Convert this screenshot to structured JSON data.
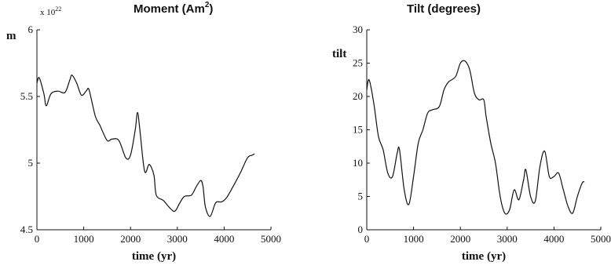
{
  "chart_data": [
    {
      "type": "line",
      "title": "Moment (Am",
      "title_superscript": "2",
      "title_close": ")",
      "ylabel": "m",
      "xlabel": "time (yr)",
      "y_exponent_prefix": "x 10",
      "y_exponent_power": "22",
      "xlim": [
        0,
        5000
      ],
      "ylim": [
        4.5,
        6.0
      ],
      "xticks": [
        0,
        1000,
        2000,
        3000,
        4000,
        5000
      ],
      "xtick_labels": [
        "0",
        "1000",
        "2000",
        "3000",
        "4000",
        "5000"
      ],
      "yticks": [
        4.5,
        5.0,
        5.5,
        6.0
      ],
      "ytick_labels": [
        "4.5",
        "5",
        "5.5",
        "6"
      ],
      "grid": false,
      "series": [
        {
          "x": [
            0,
            50,
            150,
            200,
            300,
            450,
            600,
            700,
            750,
            850,
            950,
            1050,
            1100,
            1150,
            1250,
            1350,
            1500,
            1600,
            1750,
            1900,
            2000,
            2100,
            2150,
            2200,
            2300,
            2400,
            2500,
            2550,
            2700,
            2850,
            2950,
            3050,
            3150,
            3300,
            3400,
            3500,
            3550,
            3600,
            3700,
            3800,
            3850,
            3950,
            4050,
            4200,
            4350,
            4500,
            4600,
            4650
          ],
          "y": [
            5.6,
            5.64,
            5.52,
            5.43,
            5.52,
            5.54,
            5.53,
            5.62,
            5.66,
            5.6,
            5.51,
            5.54,
            5.56,
            5.5,
            5.35,
            5.28,
            5.17,
            5.18,
            5.17,
            5.04,
            5.06,
            5.25,
            5.38,
            5.25,
            4.94,
            4.99,
            4.91,
            4.76,
            4.72,
            4.66,
            4.64,
            4.7,
            4.75,
            4.76,
            4.82,
            4.87,
            4.82,
            4.67,
            4.6,
            4.69,
            4.71,
            4.71,
            4.74,
            4.83,
            4.93,
            5.04,
            5.06,
            5.07
          ]
        }
      ]
    },
    {
      "type": "line",
      "title": "Tilt (degrees)",
      "ylabel": "tilt",
      "xlabel": "time (yr)",
      "xlim": [
        0,
        5000
      ],
      "ylim": [
        0,
        30
      ],
      "xticks": [
        0,
        1000,
        2000,
        3000,
        4000,
        5000
      ],
      "xtick_labels": [
        "0",
        "1000",
        "2000",
        "3000",
        "4000",
        "5000"
      ],
      "yticks": [
        0,
        5,
        10,
        15,
        20,
        25,
        30
      ],
      "ytick_labels": [
        "0",
        "5",
        "10",
        "15",
        "20",
        "25",
        "30"
      ],
      "grid": false,
      "series": [
        {
          "x": [
            0,
            50,
            150,
            250,
            350,
            450,
            550,
            650,
            700,
            800,
            900,
            1000,
            1100,
            1200,
            1300,
            1400,
            1550,
            1650,
            1750,
            1900,
            2000,
            2100,
            2200,
            2300,
            2400,
            2500,
            2550,
            2650,
            2750,
            2850,
            2950,
            3050,
            3150,
            3250,
            3350,
            3400,
            3500,
            3600,
            3700,
            3800,
            3900,
            4000,
            4100,
            4200,
            4300,
            4400,
            4500,
            4600,
            4650
          ],
          "y": [
            21,
            22.5,
            19,
            14,
            12,
            8.5,
            8,
            11.5,
            12,
            6,
            3.8,
            8,
            13,
            15,
            17.5,
            18,
            18.5,
            21,
            22.2,
            23,
            25,
            25.3,
            24,
            20.5,
            19.5,
            19.5,
            17,
            13,
            10,
            5,
            2.5,
            3,
            6,
            4.5,
            7.5,
            9,
            5,
            4.3,
            9.5,
            11.8,
            8,
            8,
            8.5,
            6,
            3.5,
            2.5,
            5,
            7,
            7.2
          ]
        }
      ]
    }
  ]
}
